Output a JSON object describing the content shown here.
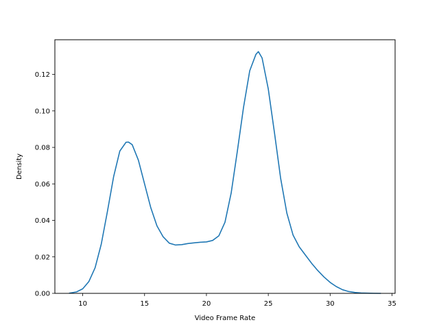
{
  "chart_data": {
    "type": "line",
    "title": "",
    "xlabel": "Video Frame Rate",
    "ylabel": "Density",
    "xlim": [
      7.75,
      35.25
    ],
    "ylim": [
      0.0,
      0.139
    ],
    "xticks": [
      10,
      15,
      20,
      25,
      30,
      35
    ],
    "yticks": [
      0.0,
      0.02,
      0.04,
      0.06,
      0.08,
      0.1,
      0.12
    ],
    "xtick_labels": [
      "10",
      "15",
      "20",
      "25",
      "30",
      "35"
    ],
    "ytick_labels": [
      "0.00",
      "0.02",
      "0.04",
      "0.06",
      "0.08",
      "0.10",
      "0.12"
    ],
    "grid": false,
    "legend": "none",
    "series": [
      {
        "color": "#1f77b4",
        "x": [
          8.9,
          9.5,
          10.0,
          10.5,
          11.0,
          11.5,
          12.0,
          12.5,
          13.0,
          13.5,
          13.7,
          14.0,
          14.5,
          15.0,
          15.5,
          16.0,
          16.5,
          17.0,
          17.5,
          18.0,
          18.5,
          19.0,
          19.5,
          20.0,
          20.5,
          21.0,
          21.5,
          22.0,
          22.5,
          23.0,
          23.5,
          24.0,
          24.2,
          24.5,
          25.0,
          25.5,
          26.0,
          26.5,
          27.0,
          27.5,
          28.0,
          28.5,
          29.0,
          29.5,
          30.0,
          30.5,
          31.0,
          31.5,
          32.0,
          32.5,
          33.0,
          33.5,
          34.1
        ],
        "y": [
          0.0001,
          0.0008,
          0.0025,
          0.0065,
          0.014,
          0.027,
          0.045,
          0.064,
          0.078,
          0.0828,
          0.0829,
          0.0815,
          0.073,
          0.06,
          0.047,
          0.037,
          0.031,
          0.0275,
          0.0265,
          0.0267,
          0.0273,
          0.0277,
          0.028,
          0.0282,
          0.029,
          0.0315,
          0.039,
          0.055,
          0.078,
          0.102,
          0.122,
          0.131,
          0.1325,
          0.129,
          0.112,
          0.088,
          0.063,
          0.044,
          0.032,
          0.0255,
          0.021,
          0.0165,
          0.0125,
          0.009,
          0.006,
          0.0037,
          0.002,
          0.001,
          0.0005,
          0.0002,
          0.0001,
          5e-05,
          0.0
        ]
      }
    ]
  }
}
